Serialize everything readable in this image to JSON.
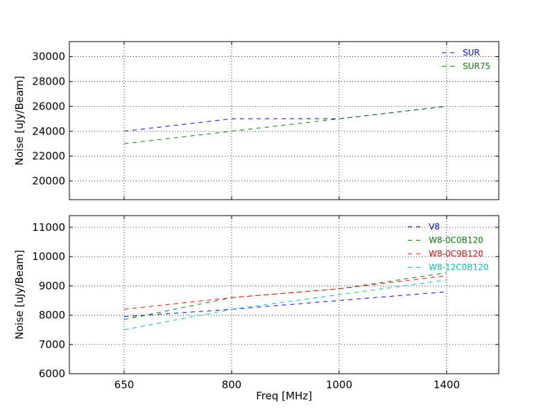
{
  "chart_data": [
    {
      "type": "line",
      "panel": "top",
      "categories": [
        "650",
        "800",
        "1000",
        "1400"
      ],
      "yticks": [
        20000,
        22000,
        24000,
        26000,
        28000,
        30000
      ],
      "ylim": [
        18500,
        31200
      ],
      "ylabel": "Noise [uJy/Beam]",
      "xlabel": "",
      "grid": true,
      "legend_position": "top-right",
      "series": [
        {
          "name": "SUR",
          "color": "#0000ff",
          "values": [
            24000,
            25000,
            25000,
            26000
          ]
        },
        {
          "name": "SUR75",
          "color": "#008000",
          "values": [
            23000,
            24000,
            25000,
            26000
          ]
        }
      ]
    },
    {
      "type": "line",
      "panel": "bottom",
      "categories": [
        "650",
        "800",
        "1000",
        "1400"
      ],
      "yticks": [
        6000,
        7000,
        8000,
        9000,
        10000,
        11000
      ],
      "ylim": [
        6000,
        11400
      ],
      "ylabel": "Noise [uJy/Beam]",
      "xlabel": "Freq [MHz]",
      "grid": true,
      "legend_position": "top-right",
      "series": [
        {
          "name": "V8",
          "color": "#0000ff",
          "values": [
            7950,
            8200,
            8500,
            8800
          ]
        },
        {
          "name": "W8-0C0B120",
          "color": "#008000",
          "values": [
            7850,
            8600,
            8900,
            9450
          ]
        },
        {
          "name": "W8-0C9B120",
          "color": "#ff0000",
          "values": [
            8200,
            8600,
            8900,
            9350
          ]
        },
        {
          "name": "W8-12C0B120",
          "color": "#00bfbf",
          "values": [
            7500,
            8200,
            8700,
            9200
          ]
        }
      ]
    }
  ]
}
